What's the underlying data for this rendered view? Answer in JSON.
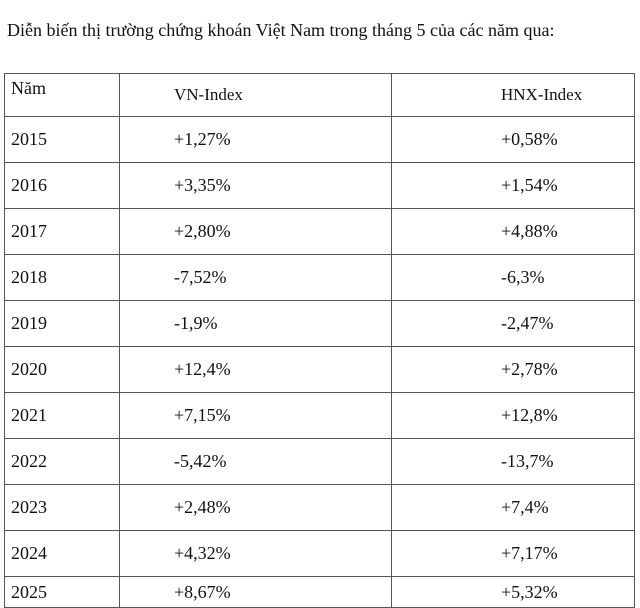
{
  "caption": "Diễn biến thị trường chứng khoán Việt Nam trong tháng 5 của các năm qua:",
  "table": {
    "headers": [
      "Năm",
      "VN-Index",
      "HNX-Index"
    ],
    "rows": [
      [
        "2015",
        "+1,27%",
        "+0,58%"
      ],
      [
        "2016",
        "+3,35%",
        "+1,54%"
      ],
      [
        "2017",
        "+2,80%",
        "+4,88%"
      ],
      [
        "2018",
        "-7,52%",
        "-6,3%"
      ],
      [
        "2019",
        "-1,9%",
        "-2,47%"
      ],
      [
        "2020",
        "+12,4%",
        "+2,78%"
      ],
      [
        "2021",
        "+7,15%",
        "+12,8%"
      ],
      [
        "2022",
        "-5,42%",
        "-13,7%"
      ],
      [
        "2023",
        "+2,48%",
        "+7,4%"
      ],
      [
        "2024",
        "+4,32%",
        "+7,17%"
      ],
      [
        "2025",
        "+8,67%",
        "+5,32%"
      ]
    ]
  }
}
